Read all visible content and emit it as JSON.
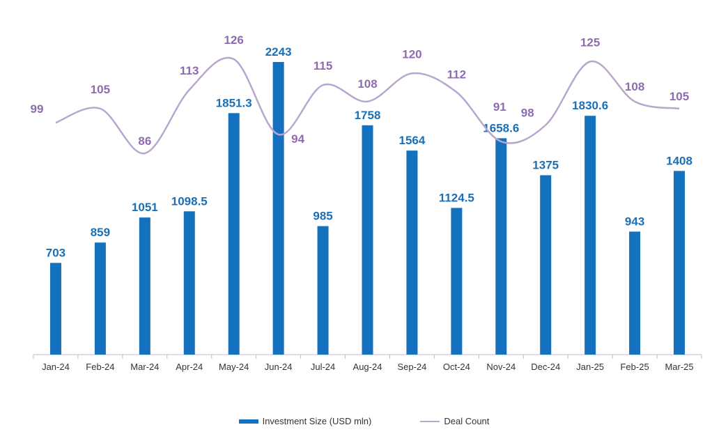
{
  "chart_data": {
    "type": "bar+line",
    "title": "",
    "categories": [
      "Jan-24",
      "Feb-24",
      "Mar-24",
      "Apr-24",
      "May-24",
      "Jun-24",
      "Jul-24",
      "Aug-24",
      "Sep-24",
      "Oct-24",
      "Nov-24",
      "Dec-24",
      "Jan-25",
      "Feb-25",
      "Mar-25"
    ],
    "series": [
      {
        "name": "Investment Size (USD mln)",
        "type": "bar",
        "color": "#1570be",
        "label_color": "#1a6fb5",
        "values": [
          703,
          859,
          1051,
          1098.5,
          1851.3,
          2243,
          985,
          1758,
          1564,
          1124.5,
          1658.6,
          1375,
          1830.6,
          943,
          1408
        ],
        "labels": [
          "703",
          "859",
          "1051",
          "1098.5",
          "1851.3",
          "2243",
          "985",
          "1758",
          "1564",
          "1124.5",
          "1658.6",
          "1375",
          "1830.6",
          "943",
          "1408"
        ]
      },
      {
        "name": "Deal Count",
        "type": "line",
        "color": "#b9a6cf",
        "label_color": "#8e6bb0",
        "values": [
          99,
          105,
          86,
          113,
          126,
          94,
          115,
          108,
          120,
          112,
          91,
          98,
          125,
          108,
          105
        ]
      }
    ],
    "legend": {
      "position": "bottom",
      "items": [
        "Investment Size (USD mln)",
        "Deal Count"
      ]
    },
    "grid": false
  }
}
